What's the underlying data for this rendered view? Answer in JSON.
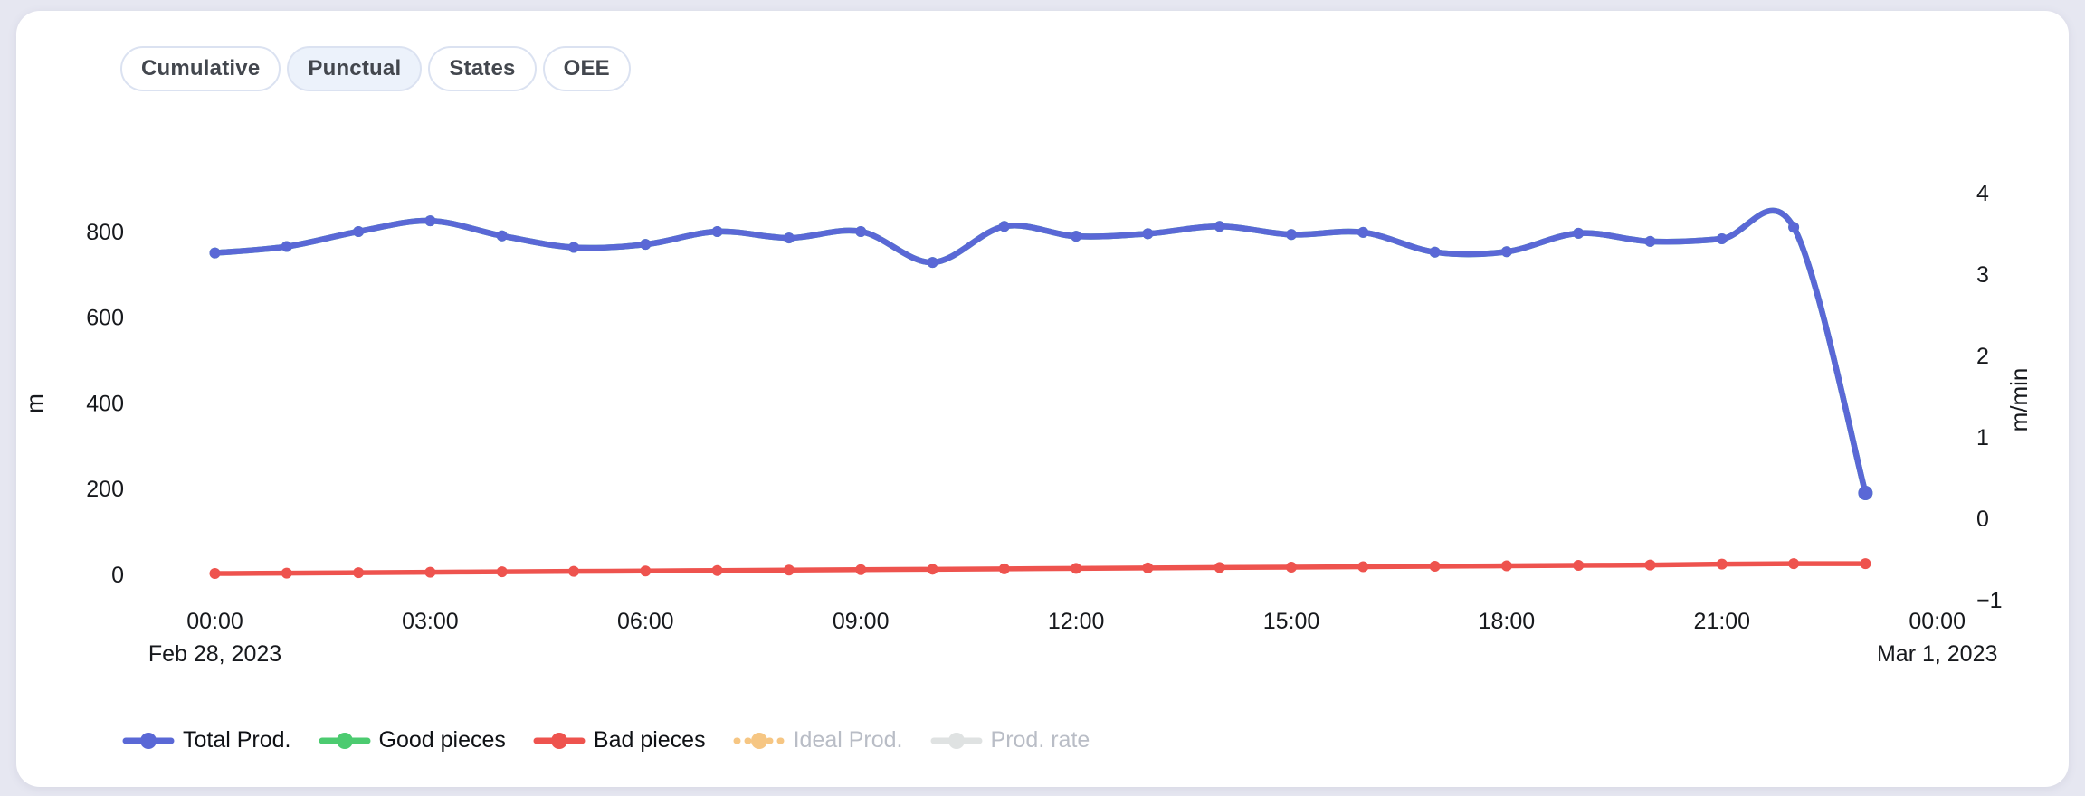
{
  "page": {
    "background_color": "#e6e7f1",
    "card_color": "#ffffff"
  },
  "tabs": [
    {
      "label": "Cumulative",
      "selected": false
    },
    {
      "label": "Punctual",
      "selected": true
    },
    {
      "label": "States",
      "selected": false
    },
    {
      "label": "OEE",
      "selected": false
    }
  ],
  "chart_data": {
    "type": "line",
    "x_hours": [
      0,
      1,
      2,
      3,
      4,
      5,
      6,
      7,
      8,
      9,
      10,
      11,
      12,
      13,
      14,
      15,
      16,
      17,
      18,
      19,
      20,
      21,
      22,
      23
    ],
    "x_ticks": [
      {
        "hour": 0,
        "label": "00:00",
        "date_label": "Feb 28, 2023"
      },
      {
        "hour": 3,
        "label": "03:00"
      },
      {
        "hour": 6,
        "label": "06:00"
      },
      {
        "hour": 9,
        "label": "09:00"
      },
      {
        "hour": 12,
        "label": "12:00"
      },
      {
        "hour": 15,
        "label": "15:00"
      },
      {
        "hour": 18,
        "label": "18:00"
      },
      {
        "hour": 21,
        "label": "21:00"
      },
      {
        "hour": 24,
        "label": "00:00",
        "date_label": "Mar 1, 2023"
      }
    ],
    "left_axis": {
      "label": "m",
      "ticks": [
        800,
        600,
        400,
        200,
        0
      ],
      "range": [
        0,
        880
      ]
    },
    "right_axis": {
      "label": "m/min",
      "ticks": [
        4,
        3,
        2,
        1,
        0,
        -1
      ],
      "range": [
        -1,
        4
      ]
    },
    "grid": false,
    "legend_position": "bottom-left",
    "series": [
      {
        "name": "Good pieces",
        "color": "#4ccb70",
        "axis": "left",
        "style": "solid",
        "enabled": true,
        "values": [
          750,
          765,
          800,
          825,
          790,
          763,
          770,
          800,
          785,
          800,
          728,
          812,
          789,
          795,
          812,
          793,
          798,
          752,
          753,
          796,
          777,
          783,
          810,
          190
        ]
      },
      {
        "name": "Total Prod.",
        "color": "#5a68d6",
        "axis": "left",
        "style": "solid",
        "enabled": true,
        "values": [
          750,
          765,
          800,
          825,
          790,
          763,
          770,
          800,
          785,
          800,
          728,
          812,
          789,
          795,
          812,
          793,
          798,
          752,
          753,
          796,
          777,
          783,
          810,
          190
        ]
      },
      {
        "name": "Bad pieces",
        "color": "#ee534e",
        "axis": "left",
        "style": "solid",
        "enabled": true,
        "values": [
          2,
          3,
          4,
          5,
          6,
          7,
          8,
          9,
          10,
          11,
          12,
          13,
          14,
          15,
          16,
          17,
          18,
          19,
          20,
          21,
          22,
          24,
          25,
          25
        ]
      },
      {
        "name": "Ideal Prod.",
        "color": "#f6c683",
        "axis": "left",
        "style": "dotted",
        "enabled": false
      },
      {
        "name": "Prod. rate",
        "color": "#dfe2e2",
        "axis": "right",
        "style": "solid",
        "enabled": false
      }
    ],
    "legend_order": [
      "Total Prod.",
      "Good pieces",
      "Bad pieces",
      "Ideal Prod.",
      "Prod. rate"
    ]
  }
}
